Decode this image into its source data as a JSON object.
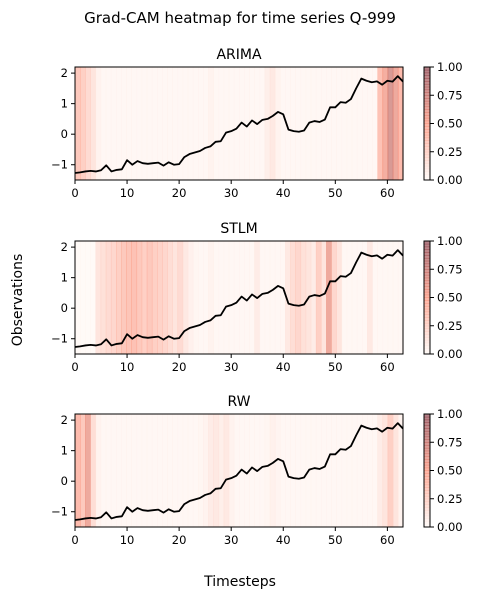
{
  "figure": {
    "title": "Grad-CAM heatmap for time series Q-999",
    "ylabel": "Observations",
    "xlabel": "Timesteps"
  },
  "colorbar": {
    "ticks": [
      "0.00",
      "0.25",
      "0.50",
      "0.75",
      "1.00"
    ],
    "range": [
      0,
      1
    ],
    "colors": {
      "low": "#fff5f0",
      "mid": "#fb6a4a",
      "high": "#67000d"
    }
  },
  "chart_data": [
    {
      "type": "line",
      "title": "ARIMA",
      "xlim": [
        0,
        63
      ],
      "ylim": [
        -1.5,
        2.2
      ],
      "xticks": [
        "0",
        "10",
        "20",
        "30",
        "40",
        "50",
        "60"
      ],
      "yticks": [
        "−1",
        "0",
        "1",
        "2"
      ],
      "series": [
        {
          "color": "#000000",
          "y": [
            -1.27,
            -1.25,
            -1.22,
            -1.2,
            -1.22,
            -1.18,
            -1.02,
            -1.22,
            -1.17,
            -1.15,
            -0.85,
            -1.0,
            -0.88,
            -0.95,
            -0.97,
            -0.95,
            -0.93,
            -1.03,
            -0.92,
            -1.0,
            -0.98,
            -0.75,
            -0.65,
            -0.6,
            -0.55,
            -0.45,
            -0.4,
            -0.25,
            -0.23,
            0.05,
            0.1,
            0.18,
            0.38,
            0.25,
            0.45,
            0.33,
            0.47,
            0.5,
            0.6,
            0.73,
            0.65,
            0.15,
            0.1,
            0.08,
            0.12,
            0.38,
            0.43,
            0.4,
            0.48,
            0.88,
            0.88,
            1.05,
            1.03,
            1.15,
            1.5,
            1.82,
            1.75,
            1.7,
            1.73,
            1.62,
            1.75,
            1.72,
            1.9,
            1.72
          ]
        }
      ],
      "heat": [
        0.35,
        0.3,
        0.22,
        0.15,
        0.05,
        0.02,
        0.02,
        0.02,
        0.02,
        0.02,
        0.02,
        0.02,
        0.02,
        0.02,
        0.02,
        0.02,
        0.02,
        0.02,
        0.02,
        0.02,
        0.02,
        0.02,
        0.02,
        0.02,
        0.02,
        0.02,
        0.05,
        0.02,
        0.02,
        0.02,
        0.02,
        0.02,
        0.02,
        0.02,
        0.02,
        0.02,
        0.02,
        0.08,
        0.12,
        0.05,
        0.02,
        0.02,
        0.02,
        0.02,
        0.02,
        0.02,
        0.02,
        0.02,
        0.02,
        0.02,
        0.02,
        0.02,
        0.02,
        0.02,
        0.02,
        0.02,
        0.02,
        0.02,
        0.02,
        0.4,
        0.55,
        0.75,
        0.6,
        0.45
      ]
    },
    {
      "type": "line",
      "title": "STLM",
      "xlim": [
        0,
        63
      ],
      "ylim": [
        -1.5,
        2.2
      ],
      "xticks": [
        "0",
        "10",
        "20",
        "30",
        "40",
        "50",
        "60"
      ],
      "yticks": [
        "−1",
        "0",
        "1",
        "2"
      ],
      "series": [
        {
          "color": "#000000",
          "y": [
            -1.27,
            -1.25,
            -1.22,
            -1.2,
            -1.22,
            -1.18,
            -1.02,
            -1.22,
            -1.17,
            -1.15,
            -0.85,
            -1.0,
            -0.88,
            -0.95,
            -0.97,
            -0.95,
            -0.93,
            -1.03,
            -0.92,
            -1.0,
            -0.98,
            -0.75,
            -0.65,
            -0.6,
            -0.55,
            -0.45,
            -0.4,
            -0.25,
            -0.23,
            0.05,
            0.1,
            0.18,
            0.38,
            0.25,
            0.45,
            0.33,
            0.47,
            0.5,
            0.6,
            0.73,
            0.65,
            0.15,
            0.1,
            0.08,
            0.12,
            0.38,
            0.43,
            0.4,
            0.48,
            0.88,
            0.88,
            1.05,
            1.03,
            1.15,
            1.5,
            1.82,
            1.75,
            1.7,
            1.73,
            1.62,
            1.75,
            1.72,
            1.9,
            1.72
          ]
        }
      ],
      "heat": [
        0.0,
        0.0,
        0.0,
        0.0,
        0.15,
        0.18,
        0.22,
        0.25,
        0.3,
        0.35,
        0.38,
        0.4,
        0.35,
        0.3,
        0.35,
        0.3,
        0.28,
        0.25,
        0.2,
        0.15,
        0.22,
        0.12,
        0.06,
        0.03,
        0.02,
        0.02,
        0.05,
        0.02,
        0.02,
        0.02,
        0.02,
        0.02,
        0.02,
        0.02,
        0.02,
        0.1,
        0.02,
        0.02,
        0.02,
        0.02,
        0.02,
        0.12,
        0.2,
        0.25,
        0.18,
        0.15,
        0.1,
        0.3,
        0.15,
        0.6,
        0.25,
        0.15,
        0.02,
        0.02,
        0.02,
        0.02,
        0.02,
        0.12,
        0.02,
        0.02,
        0.02,
        0.02,
        0.02,
        0.02
      ]
    },
    {
      "type": "line",
      "title": "RW",
      "xlim": [
        0,
        63
      ],
      "ylim": [
        -1.5,
        2.2
      ],
      "xticks": [
        "0",
        "10",
        "20",
        "30",
        "40",
        "50",
        "60"
      ],
      "yticks": [
        "−1",
        "0",
        "1",
        "2"
      ],
      "series": [
        {
          "color": "#000000",
          "y": [
            -1.27,
            -1.25,
            -1.22,
            -1.2,
            -1.22,
            -1.18,
            -1.02,
            -1.22,
            -1.17,
            -1.15,
            -0.85,
            -1.0,
            -0.88,
            -0.95,
            -0.97,
            -0.95,
            -0.93,
            -1.03,
            -0.92,
            -1.0,
            -0.98,
            -0.75,
            -0.65,
            -0.6,
            -0.55,
            -0.45,
            -0.4,
            -0.25,
            -0.23,
            0.05,
            0.1,
            0.18,
            0.38,
            0.25,
            0.45,
            0.33,
            0.47,
            0.5,
            0.6,
            0.73,
            0.65,
            0.15,
            0.1,
            0.08,
            0.12,
            0.38,
            0.43,
            0.4,
            0.48,
            0.88,
            0.88,
            1.05,
            1.03,
            1.15,
            1.5,
            1.82,
            1.75,
            1.7,
            1.73,
            1.62,
            1.75,
            1.72,
            1.9,
            1.72
          ]
        }
      ],
      "heat": [
        0.45,
        0.35,
        0.6,
        0.2,
        0.05,
        0.02,
        0.02,
        0.02,
        0.02,
        0.02,
        0.02,
        0.02,
        0.02,
        0.02,
        0.02,
        0.02,
        0.02,
        0.02,
        0.02,
        0.02,
        0.02,
        0.02,
        0.02,
        0.02,
        0.03,
        0.05,
        0.1,
        0.12,
        0.08,
        0.12,
        0.05,
        0.02,
        0.02,
        0.02,
        0.02,
        0.02,
        0.02,
        0.03,
        0.06,
        0.04,
        0.02,
        0.02,
        0.02,
        0.02,
        0.02,
        0.02,
        0.02,
        0.02,
        0.02,
        0.02,
        0.02,
        0.02,
        0.02,
        0.02,
        0.02,
        0.02,
        0.02,
        0.02,
        0.02,
        0.1,
        0.15,
        0.3,
        0.15,
        0.05
      ]
    }
  ]
}
